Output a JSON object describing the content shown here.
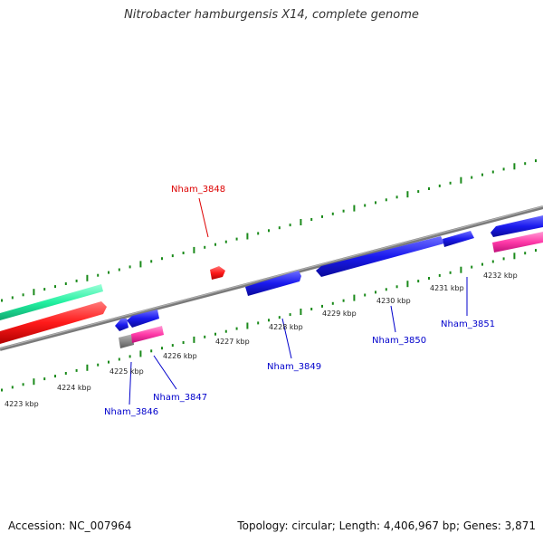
{
  "title": "Nitrobacter hamburgensis X14, complete genome",
  "footer": {
    "accession": "Accession: NC_007964",
    "summary": "Topology: circular; Length: 4,406,967 bp; Genes: 3,871"
  },
  "colors": {
    "backbone": "#888888",
    "forward_cds": "#1a1aee",
    "rna_gene_red": "#ff1a1a",
    "teal_feature": "#22f0a0",
    "pink_feature": "#ff3aa8",
    "tick": "#1a8a1a",
    "label_blue": "#0000cc",
    "label_red": "#dd0000"
  },
  "scale_labels": [
    "4223 kbp",
    "4224 kbp",
    "4225 kbp",
    "4226 kbp",
    "4227 kbp",
    "4228 kbp",
    "4229 kbp",
    "4230 kbp",
    "4231 kbp",
    "4232 kbp"
  ],
  "gene_labels": [
    {
      "name": "Nham_3848",
      "color": "red"
    },
    {
      "name": "Nham_3846",
      "color": "blue"
    },
    {
      "name": "Nham_3847",
      "color": "blue"
    },
    {
      "name": "Nham_3849",
      "color": "blue"
    },
    {
      "name": "Nham_3850",
      "color": "blue"
    },
    {
      "name": "Nham_3851",
      "color": "blue"
    }
  ]
}
